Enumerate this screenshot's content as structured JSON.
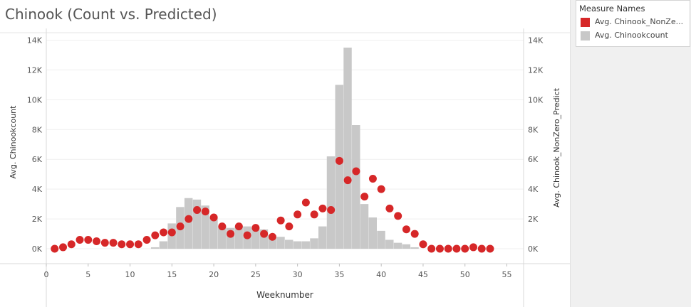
{
  "chart_data": {
    "type": "bar",
    "title": "Chinook (Count vs. Predicted)",
    "xlabel": "Weeknumber",
    "ylabel_left": "Avg. Chinookcount",
    "ylabel_right": "Avg. Chinook_NonZero_Predict",
    "xlim": [
      0,
      57
    ],
    "ylim": [
      -1000,
      14500
    ],
    "x_ticks": [
      0,
      5,
      10,
      15,
      20,
      25,
      30,
      35,
      40,
      45,
      50,
      55
    ],
    "y_ticks": [
      0,
      2000,
      4000,
      6000,
      8000,
      10000,
      12000,
      14000
    ],
    "y_tick_labels": [
      "0K",
      "2K",
      "4K",
      "6K",
      "8K",
      "10K",
      "12K",
      "14K"
    ],
    "grid": true,
    "legend_position": "top-right",
    "weeks": [
      1,
      2,
      3,
      4,
      5,
      6,
      7,
      8,
      9,
      10,
      11,
      12,
      13,
      14,
      15,
      16,
      17,
      18,
      19,
      20,
      21,
      22,
      23,
      24,
      25,
      26,
      27,
      28,
      29,
      30,
      31,
      32,
      33,
      34,
      35,
      36,
      37,
      38,
      39,
      40,
      41,
      42,
      43,
      44,
      45,
      46,
      47,
      48,
      49,
      50,
      51,
      52,
      53
    ],
    "series": [
      {
        "name": "Avg. Chinookcount",
        "kind": "bar",
        "color": "#c8c8c8",
        "values": [
          0,
          0,
          0,
          0,
          0,
          0,
          0,
          0,
          0,
          0,
          0,
          0,
          100,
          500,
          1700,
          2800,
          3400,
          3300,
          2900,
          2100,
          1500,
          1400,
          1500,
          1500,
          1400,
          1300,
          900,
          800,
          600,
          500,
          500,
          700,
          1500,
          6200,
          11000,
          13500,
          8300,
          3000,
          2100,
          1200,
          600,
          400,
          300,
          100,
          0,
          0,
          0,
          0,
          0,
          0,
          0,
          0,
          0
        ]
      },
      {
        "name": "Avg. Chinook_NonZero_Predict",
        "kind": "point",
        "color": "#d62728",
        "values": [
          0,
          100,
          300,
          600,
          600,
          500,
          400,
          400,
          300,
          300,
          300,
          600,
          900,
          1100,
          1100,
          1500,
          2000,
          2600,
          2500,
          2100,
          1500,
          1000,
          1500,
          900,
          1400,
          1000,
          800,
          1900,
          1500,
          2300,
          3100,
          2300,
          2700,
          2600,
          5900,
          4600,
          5200,
          3500,
          4700,
          4000,
          2700,
          2200,
          1300,
          1000,
          300,
          0,
          0,
          0,
          0,
          0,
          100,
          0,
          0
        ]
      }
    ],
    "legend": {
      "title": "Measure Names",
      "items": [
        {
          "label": "Avg. Chinook_NonZe...",
          "color": "#d62728"
        },
        {
          "label": "Avg. Chinookcount",
          "color": "#c8c8c8"
        }
      ]
    }
  }
}
